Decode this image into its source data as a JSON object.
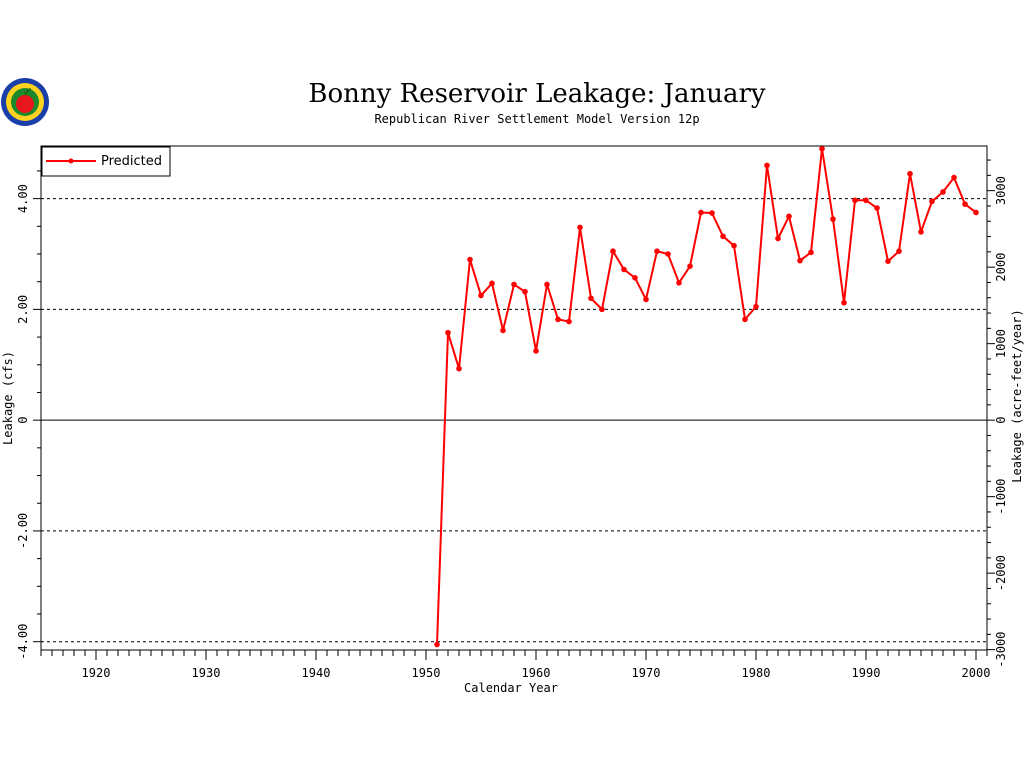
{
  "chart_data": {
    "type": "line",
    "title": "Bonny Reservoir Leakage: January",
    "subtitle": "Republican River Settlement Model Version 12p",
    "xlabel": "Calendar Year",
    "ylabel": "Leakage (cfs)",
    "y2label": "Leakage (acre-feet/year)",
    "xlim": [
      1915,
      2001
    ],
    "ylim": [
      -4.15,
      4.95
    ],
    "x_ticks": [
      "1920",
      "1930",
      "1940",
      "1950",
      "1960",
      "1970",
      "1980",
      "1990",
      "2000"
    ],
    "y_ticks": [
      "-4.00",
      "-2.00",
      "0",
      "2.00",
      "4.00"
    ],
    "y2_ticks": [
      "-3000",
      "-2000",
      "-1000",
      "0",
      "1000",
      "2000",
      "3000"
    ],
    "legend_position": "top-left",
    "grid": "dashed horizontal lines at -4, -2, 2, 4; solid line at 0",
    "colors": {
      "series": "#ff0000",
      "axes": "#000000",
      "background": "#ffffff"
    },
    "series": [
      {
        "name": "Predicted",
        "x": [
          1951,
          1952,
          1953,
          1954,
          1955,
          1956,
          1957,
          1958,
          1959,
          1960,
          1961,
          1962,
          1963,
          1964,
          1965,
          1966,
          1967,
          1968,
          1969,
          1970,
          1971,
          1972,
          1973,
          1974,
          1975,
          1976,
          1977,
          1978,
          1979,
          1980,
          1981,
          1982,
          1983,
          1984,
          1985,
          1986,
          1987,
          1988,
          1989,
          1990,
          1991,
          1992,
          1993,
          1994,
          1995,
          1996,
          1997,
          1998,
          1999,
          2000
        ],
        "y": [
          -4.05,
          1.58,
          0.93,
          2.9,
          2.25,
          2.47,
          1.62,
          2.45,
          2.32,
          1.25,
          2.45,
          1.82,
          1.78,
          3.48,
          2.2,
          2.0,
          3.05,
          2.72,
          2.57,
          2.18,
          3.05,
          3.0,
          2.48,
          2.78,
          3.75,
          3.74,
          3.32,
          3.15,
          1.82,
          2.05,
          4.6,
          3.28,
          3.68,
          2.88,
          3.03,
          4.9,
          3.63,
          2.12,
          3.97,
          3.97,
          3.83,
          2.87,
          3.05,
          4.45,
          3.4,
          3.95,
          4.12,
          4.38,
          3.9,
          3.75
        ]
      }
    ]
  },
  "logo": {
    "icon": "apple-seal-icon"
  }
}
